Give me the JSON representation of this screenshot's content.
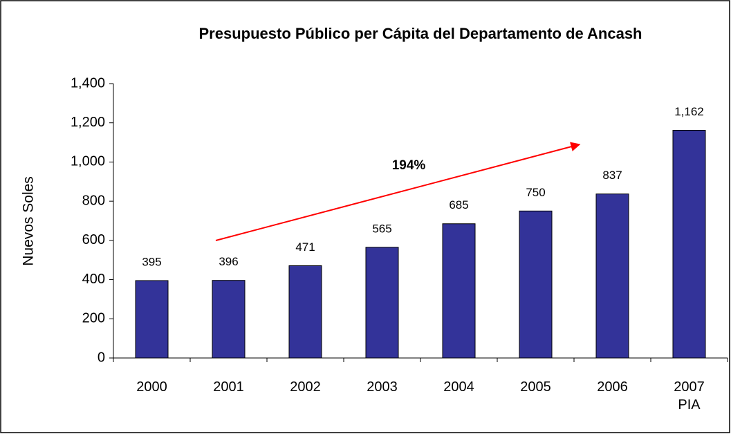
{
  "chart_data": {
    "type": "bar",
    "title": "Presupuesto Público per Cápita del Departamento de Ancash",
    "ylabel": "Nuevos Soles",
    "categories": [
      "2000",
      "2001",
      "2002",
      "2003",
      "2004",
      "2005",
      "2006",
      "2007\nPIA"
    ],
    "values": [
      395,
      396,
      471,
      565,
      685,
      750,
      837,
      1162
    ],
    "value_labels": [
      "395",
      "396",
      "471",
      "565",
      "685",
      "750",
      "837",
      "1,162"
    ],
    "color": "#333399",
    "ylim": [
      0,
      1400
    ],
    "yticks": [
      0,
      200,
      400,
      600,
      800,
      {
        "value": 1000,
        "label": "1,000"
      },
      {
        "value": 1200,
        "label": "1,200"
      },
      {
        "value": 1400,
        "label": "1,400"
      }
    ],
    "annotation": "194%",
    "annotation_color": "#ff0000"
  }
}
